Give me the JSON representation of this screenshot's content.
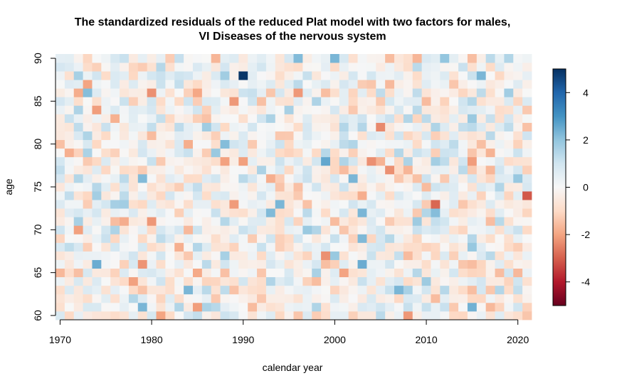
{
  "chart_data": {
    "type": "heatmap",
    "title_line1": "The standardized residuals of the reduced Plat model with two factors for males,",
    "title_line2": "VI Diseases of the nervous system",
    "xlabel": "calendar year",
    "ylabel": "age",
    "x_range": [
      1970,
      2021
    ],
    "y_range": [
      60,
      90
    ],
    "x_ticks": [
      1970,
      1980,
      1990,
      2000,
      2010,
      2020
    ],
    "y_ticks": [
      60,
      65,
      70,
      75,
      80,
      85,
      90
    ],
    "color_scale": {
      "min": -5,
      "max": 5,
      "ticks": [
        4,
        2,
        0,
        -2,
        -4
      ],
      "colors": [
        "#67001f",
        "#b2182b",
        "#d6604d",
        "#f4a582",
        "#fddbc7",
        "#f7f7f7",
        "#d1e5f0",
        "#92c5de",
        "#4393c3",
        "#2166ac",
        "#053061"
      ]
    },
    "notable_cells": [
      {
        "year": 1990,
        "age": 88,
        "value": 4.9
      },
      {
        "year": 2021,
        "age": 74,
        "value": -3.1
      },
      {
        "year": 2011,
        "age": 73,
        "value": -2.9
      },
      {
        "year": 1999,
        "age": 78,
        "value": 2.6
      },
      {
        "year": 1974,
        "age": 66,
        "value": 2.5
      },
      {
        "year": 2003,
        "age": 66,
        "value": 2.5
      },
      {
        "year": 2015,
        "age": 61,
        "value": 2.4
      },
      {
        "year": 2005,
        "age": 82,
        "value": -2.4
      },
      {
        "year": 2008,
        "age": 60,
        "value": -2.2
      },
      {
        "year": 1981,
        "age": 60,
        "value": -2.0
      },
      {
        "year": 1974,
        "age": 84,
        "value": -2.1
      },
      {
        "year": 2000,
        "age": 90,
        "value": 2.3
      },
      {
        "year": 1996,
        "age": 90,
        "value": 2.2
      }
    ]
  }
}
